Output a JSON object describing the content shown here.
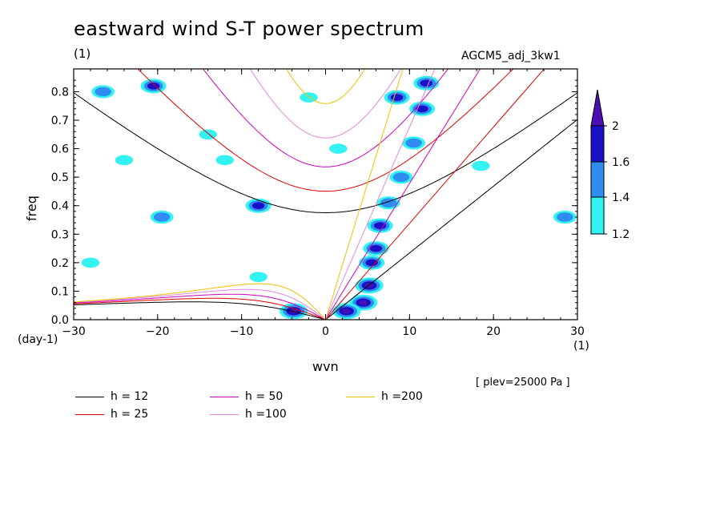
{
  "header": {
    "title": "eastward wind S-T power spectrum",
    "y_unit": "(1)",
    "model": "AGCM5_adj_3kw1",
    "x_unit": "(1)",
    "y_axis_unit": "(day-1)",
    "xlabel": "wvn",
    "ylabel": "freq",
    "plev": "[ plev=25000 Pa ]"
  },
  "colorbar": {
    "levels": [
      "2",
      "1.6",
      "1.4",
      "1.2"
    ],
    "colors": [
      "#4b0fb3",
      "#1a10c8",
      "#2f8cf0",
      "#33f2f2"
    ]
  },
  "legend": [
    {
      "label": "h = 12",
      "color": "#000000"
    },
    {
      "label": "h = 25",
      "color": "#dd0000"
    },
    {
      "label": "h = 50",
      "color": "#cc00bb"
    },
    {
      "label": "h =100",
      "color": "#dd88dd"
    },
    {
      "label": "h =200",
      "color": "#eec000"
    }
  ],
  "chart_data": {
    "type": "heatmap",
    "title": "eastward wind S-T power spectrum",
    "xlabel": "wvn",
    "ylabel": "freq",
    "xlim": [
      -30,
      30
    ],
    "ylim": [
      0,
      0.88
    ],
    "x_ticks": [
      "-30",
      "-20",
      "-10",
      "0",
      "10",
      "20",
      "30"
    ],
    "y_ticks": [
      "0.0",
      "0.1",
      "0.2",
      "0.3",
      "0.4",
      "0.5",
      "0.6",
      "0.7",
      "0.8"
    ],
    "contour_levels": [
      1.2,
      1.4,
      1.6,
      2.0
    ],
    "dispersion_curves": [
      {
        "name": "h = 12",
        "equivalent_depth": 12,
        "color": "#000000"
      },
      {
        "name": "h = 25",
        "equivalent_depth": 25,
        "color": "#dd0000"
      },
      {
        "name": "h = 50",
        "equivalent_depth": 50,
        "color": "#cc00bb"
      },
      {
        "name": "h =100",
        "equivalent_depth": 100,
        "color": "#dd88dd"
      },
      {
        "name": "h =200",
        "equivalent_depth": 200,
        "color": "#eec000"
      }
    ],
    "blobs": [
      {
        "x": 4.5,
        "y": 0.06,
        "level": 2.0
      },
      {
        "x": 5.2,
        "y": 0.12,
        "level": 2.0
      },
      {
        "x": 5.5,
        "y": 0.2,
        "level": 1.6
      },
      {
        "x": 6.0,
        "y": 0.25,
        "level": 1.6
      },
      {
        "x": 6.5,
        "y": 0.33,
        "level": 1.6
      },
      {
        "x": 7.5,
        "y": 0.41,
        "level": 1.4
      },
      {
        "x": 9.0,
        "y": 0.5,
        "level": 1.4
      },
      {
        "x": 10.5,
        "y": 0.62,
        "level": 1.4
      },
      {
        "x": 11.5,
        "y": 0.74,
        "level": 1.6
      },
      {
        "x": 12.0,
        "y": 0.83,
        "level": 1.6
      },
      {
        "x": 8.5,
        "y": 0.78,
        "level": 1.6
      },
      {
        "x": 2.5,
        "y": 0.03,
        "level": 2.0
      },
      {
        "x": -3.8,
        "y": 0.03,
        "level": 2.0
      },
      {
        "x": -20.5,
        "y": 0.82,
        "level": 1.6
      },
      {
        "x": -8.0,
        "y": 0.4,
        "level": 1.6
      },
      {
        "x": -26.5,
        "y": 0.8,
        "level": 1.4
      },
      {
        "x": -19.5,
        "y": 0.36,
        "level": 1.4
      },
      {
        "x": 28.5,
        "y": 0.36,
        "level": 1.4
      },
      {
        "x": 18.5,
        "y": 0.54,
        "level": 1.2
      },
      {
        "x": -24.0,
        "y": 0.56,
        "level": 1.2
      },
      {
        "x": -28.0,
        "y": 0.2,
        "level": 1.2
      },
      {
        "x": -14.0,
        "y": 0.65,
        "level": 1.2
      },
      {
        "x": -12.0,
        "y": 0.56,
        "level": 1.2
      },
      {
        "x": -2.0,
        "y": 0.78,
        "level": 1.2
      },
      {
        "x": 1.5,
        "y": 0.6,
        "level": 1.2
      },
      {
        "x": -8.0,
        "y": 0.15,
        "level": 1.2
      }
    ]
  }
}
